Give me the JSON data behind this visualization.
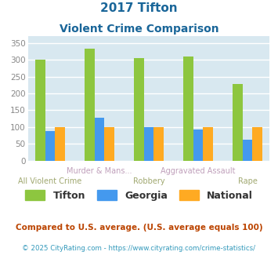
{
  "title_line1": "2017 Tifton",
  "title_line2": "Violent Crime Comparison",
  "categories": [
    "All Violent Crime",
    "Murder & Mans...",
    "Robbery",
    "Aggravated Assault",
    "Rape"
  ],
  "row1_indices": [
    1,
    3
  ],
  "row2_indices": [
    0,
    2,
    4
  ],
  "row1_labels": [
    "Murder & Mans...",
    "Aggravated Assault"
  ],
  "row2_labels": [
    "All Violent Crime",
    "Robbery",
    "Rape"
  ],
  "tifton": [
    300,
    333,
    305,
    310,
    227
  ],
  "georgia": [
    88,
    127,
    100,
    93,
    63
  ],
  "national": [
    100,
    100,
    100,
    100,
    100
  ],
  "bar_colors": [
    "#8dc63f",
    "#4499ee",
    "#ffaa22"
  ],
  "legend_labels": [
    "Tifton",
    "Georgia",
    "National"
  ],
  "ylim": [
    0,
    370
  ],
  "yticks": [
    0,
    50,
    100,
    150,
    200,
    250,
    300,
    350
  ],
  "bg_color": "#d8e8f0",
  "grid_color": "#ffffff",
  "title_color": "#1a6699",
  "row1_label_color": "#c0a0bb",
  "row2_label_color": "#a0a870",
  "footnote1": "Compared to U.S. average. (U.S. average equals 100)",
  "footnote2": "© 2025 CityRating.com - https://www.cityrating.com/crime-statistics/",
  "footnote1_color": "#bb4400",
  "footnote2_color": "#3399bb"
}
